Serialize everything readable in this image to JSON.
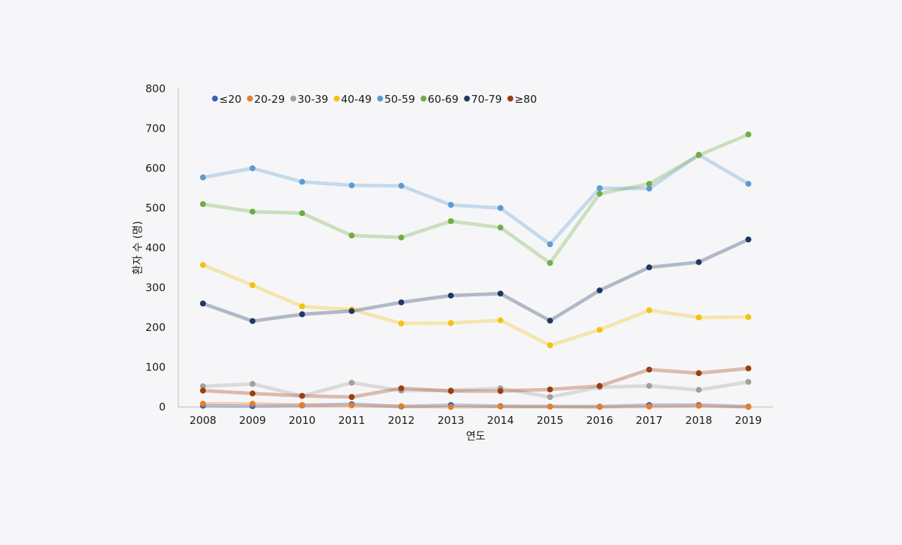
{
  "chart_data": {
    "type": "line",
    "title": "",
    "xlabel": "연도",
    "ylabel": "환자 수 (명)",
    "ylim": [
      0,
      800
    ],
    "yticks": [
      0,
      100,
      200,
      300,
      400,
      500,
      600,
      700,
      800
    ],
    "categories": [
      "2008",
      "2009",
      "2010",
      "2011",
      "2012",
      "2013",
      "2014",
      "2015",
      "2016",
      "2017",
      "2018",
      "2019"
    ],
    "legend_position": "top-left",
    "grid": false,
    "series": [
      {
        "name": "≤20",
        "color": "#3a62b5",
        "values": [
          3,
          2,
          4,
          7,
          1,
          5,
          2,
          1,
          1,
          5,
          5,
          1
        ]
      },
      {
        "name": "20-29",
        "color": "#e87d2b",
        "values": [
          8,
          8,
          5,
          4,
          2,
          0,
          1,
          1,
          0,
          1,
          3,
          0
        ]
      },
      {
        "name": "30-39",
        "color": "#a0a0a0",
        "values": [
          52,
          58,
          28,
          61,
          41,
          42,
          47,
          25,
          50,
          53,
          43,
          63
        ]
      },
      {
        "name": "40-49",
        "color": "#f4c20d",
        "values": [
          357,
          306,
          253,
          245,
          210,
          211,
          218,
          155,
          194,
          243,
          225,
          226
        ]
      },
      {
        "name": "50-59",
        "color": "#5b9bd5",
        "values": [
          577,
          600,
          566,
          557,
          556,
          508,
          500,
          409,
          550,
          549,
          634,
          561
        ]
      },
      {
        "name": "60-69",
        "color": "#70ad47",
        "values": [
          510,
          491,
          487,
          431,
          426,
          467,
          451,
          362,
          536,
          561,
          633,
          685
        ]
      },
      {
        "name": "70-79",
        "color": "#1f3864",
        "values": [
          260,
          216,
          233,
          241,
          263,
          280,
          285,
          217,
          293,
          351,
          364,
          421
        ]
      },
      {
        "name": "≥80",
        "color": "#9c3d0f",
        "values": [
          41,
          34,
          28,
          25,
          47,
          40,
          40,
          44,
          53,
          94,
          85,
          97
        ]
      }
    ]
  }
}
